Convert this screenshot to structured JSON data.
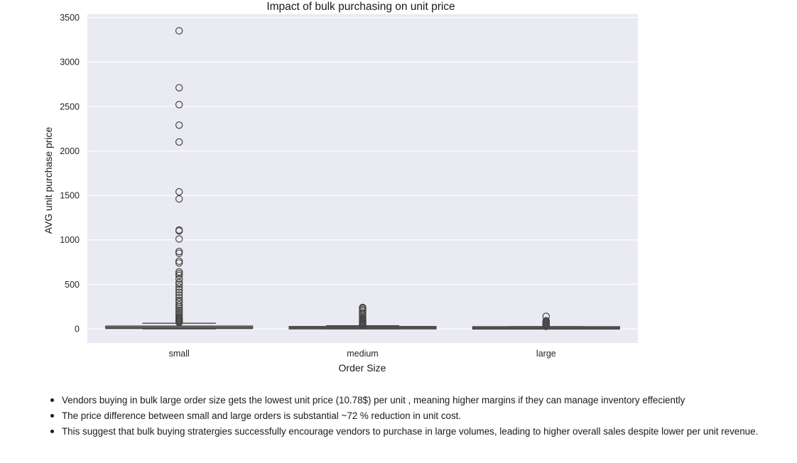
{
  "chart_data": {
    "type": "box",
    "title": "Impact of bulk purchasing on unit price",
    "xlabel": "Order Size",
    "ylabel": "AVG unit purchase price",
    "ylim": [
      -160,
      3520
    ],
    "yticks": [
      0,
      500,
      1000,
      1500,
      2000,
      2500,
      3000,
      3500
    ],
    "grid": true,
    "categories": [
      "small",
      "medium",
      "large"
    ],
    "boxes": [
      {
        "category": "small",
        "whislo": 0,
        "q1": 6,
        "median": 12,
        "q3": 28,
        "whishi": 62,
        "outliers": [
          3350,
          2710,
          2520,
          2290,
          2100,
          1540,
          1460,
          1110,
          1100,
          1010,
          870,
          850,
          760,
          740,
          640,
          620,
          600,
          560,
          520,
          500,
          470,
          440,
          410,
          380,
          350,
          320,
          300,
          270,
          250,
          230,
          210,
          190,
          170,
          150,
          130,
          120,
          110,
          100,
          90,
          80,
          70
        ]
      },
      {
        "category": "medium",
        "whislo": 0,
        "q1": 7,
        "median": 12,
        "q3": 18,
        "whishi": 34,
        "outliers": [
          240,
          230,
          215,
          200,
          180,
          160,
          140,
          120,
          110,
          100,
          90,
          80,
          70,
          60,
          50,
          45,
          40
        ]
      },
      {
        "category": "large",
        "whislo": 0,
        "q1": 6,
        "median": 10,
        "q3": 15,
        "whishi": 24,
        "outliers": [
          140,
          90,
          80,
          70,
          60,
          50,
          40,
          32,
          28
        ]
      }
    ]
  },
  "notes": [
    "Vendors buying in bulk large order size gets the lowest unit price (10.78$) per unit , meaning higher margins if they can manage inventory effeciently",
    "The price difference between small and large orders is substantial ~72 % reduction in unit cost.",
    "This suggest that bulk buying stratergies successfully encourage vendors to purchase in large volumes, leading to higher overall sales despite lower per unit revenue."
  ]
}
